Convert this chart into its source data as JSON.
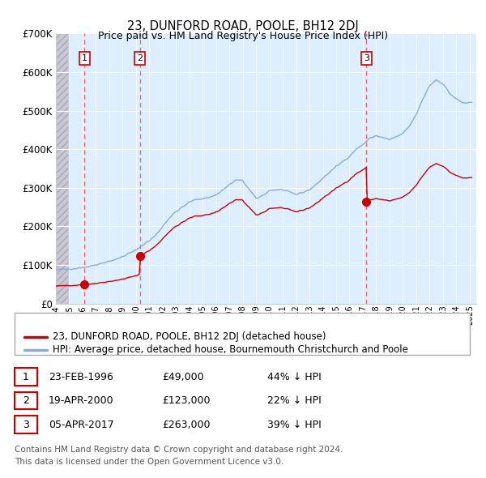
{
  "title": "23, DUNFORD ROAD, POOLE, BH12 2DJ",
  "subtitle": "Price paid vs. HM Land Registry's House Price Index (HPI)",
  "ylim": [
    0,
    700000
  ],
  "yticks": [
    0,
    100000,
    200000,
    300000,
    400000,
    500000,
    600000,
    700000
  ],
  "ytick_labels": [
    "£0",
    "£100K",
    "£200K",
    "£300K",
    "£400K",
    "£500K",
    "£600K",
    "£700K"
  ],
  "sale_prices": [
    49000,
    123000,
    263000
  ],
  "sale_labels": [
    "1",
    "2",
    "3"
  ],
  "sale_color": "#cc0000",
  "hpi_color": "#88aadd",
  "legend_line1": "23, DUNFORD ROAD, POOLE, BH12 2DJ (detached house)",
  "legend_line2": "HPI: Average price, detached house, Bournemouth Christchurch and Poole",
  "table_rows": [
    [
      "1",
      "23-FEB-1996",
      "£49,000",
      "44% ↓ HPI"
    ],
    [
      "2",
      "19-APR-2000",
      "£123,000",
      "22% ↓ HPI"
    ],
    [
      "3",
      "05-APR-2017",
      "£263,000",
      "39% ↓ HPI"
    ]
  ],
  "footer": "Contains HM Land Registry data © Crown copyright and database right 2024.\nThis data is licensed under the Open Government Licence v3.0.",
  "plot_bg_color": "#ddeeff",
  "hatch_color": "#bbbbcc"
}
